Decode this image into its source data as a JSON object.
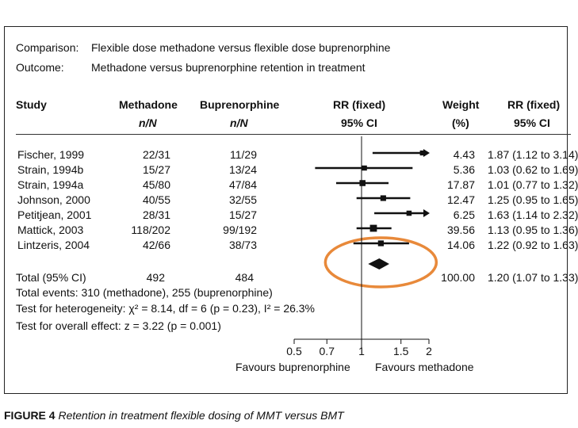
{
  "header": {
    "comparison_label": "Comparison:",
    "comparison_value": "Flexible dose methadone versus flexible dose buprenorphine",
    "outcome_label": "Outcome:",
    "outcome_value": "Methadone versus buprenorphine retention in treatment"
  },
  "columns": {
    "study": "Study",
    "methadone": "Methadone",
    "methadone_sub": "n/N",
    "bup": "Buprenorphine",
    "bup_sub": "n/N",
    "rr_plot": "RR (fixed)",
    "rr_plot_sub": "95% CI",
    "weight": "Weight",
    "weight_sub": "(%)",
    "rr": "RR (fixed)",
    "rr_sub": "95% CI"
  },
  "rows": [
    {
      "study": "Fischer, 1999",
      "methadone": "22/31",
      "bup": "11/29",
      "weight": "4.43",
      "rr": "1.87 (1.12 to 3.14)"
    },
    {
      "study": "Strain, 1994b",
      "methadone": "15/27",
      "bup": "13/24",
      "weight": "5.36",
      "rr": "1.03 (0.62 to 1.69)"
    },
    {
      "study": "Strain, 1994a",
      "methadone": "45/80",
      "bup": "47/84",
      "weight": "17.87",
      "rr": "1.01 (0.77 to 1.32)"
    },
    {
      "study": "Johnson, 2000",
      "methadone": "40/55",
      "bup": "32/55",
      "weight": "12.47",
      "rr": "1.25 (0.95 to 1.65)"
    },
    {
      "study": "Petitjean, 2001",
      "methadone": "28/31",
      "bup": "15/27",
      "weight": "6.25",
      "rr": "1.63 (1.14 to 2.32)"
    },
    {
      "study": "Mattick, 2003",
      "methadone": "118/202",
      "bup": "99/192",
      "weight": "39.56",
      "rr": "1.13 (0.95 to 1.36)"
    },
    {
      "study": "Lintzeris, 2004",
      "methadone": "42/66",
      "bup": "38/73",
      "weight": "14.06",
      "rr": "1.22 (0.92 to 1.63)"
    }
  ],
  "total": {
    "label": "Total (95% CI)",
    "methadone": "492",
    "bup": "484",
    "weight": "100.00",
    "rr": "1.20 (1.07 to 1.33)"
  },
  "footnotes": {
    "events": "Total events: 310 (methadone), 255 (buprenorphine)",
    "heterogeneity": "Test for heterogeneity: χ² = 8.14, df = 6 (p = 0.23), I² = 26.3%",
    "overall": "Test for overall effect: z = 3.22 (p = 0.001)"
  },
  "axis": {
    "favours_left": "Favours buprenorphine",
    "favours_right": "Favours methadone"
  },
  "caption": {
    "figure": "FIGURE 4",
    "text": "Retention in treatment flexible dosing of MMT versus BMT"
  },
  "colors": {
    "ink": "#111111",
    "highlight": "#e8893a"
  },
  "chart_data": {
    "type": "scatter",
    "subtype": "forest-plot",
    "title": "Methadone versus buprenorphine retention in treatment",
    "xscale": "log",
    "xlim": [
      0.5,
      2
    ],
    "xticks": [
      0.5,
      0.7,
      1,
      1.5,
      2
    ],
    "xtick_labels": [
      "0.5",
      "0.7",
      "1",
      "1.5",
      "2"
    ],
    "null_line": 1,
    "studies": [
      {
        "name": "Fischer, 1999",
        "rr": 1.87,
        "lo": 1.12,
        "hi": 3.14,
        "weight": 4.43
      },
      {
        "name": "Strain, 1994b",
        "rr": 1.03,
        "lo": 0.62,
        "hi": 1.69,
        "weight": 5.36
      },
      {
        "name": "Strain, 1994a",
        "rr": 1.01,
        "lo": 0.77,
        "hi": 1.32,
        "weight": 17.87
      },
      {
        "name": "Johnson, 2000",
        "rr": 1.25,
        "lo": 0.95,
        "hi": 1.65,
        "weight": 12.47
      },
      {
        "name": "Petitjean, 2001",
        "rr": 1.63,
        "lo": 1.14,
        "hi": 2.32,
        "weight": 6.25
      },
      {
        "name": "Mattick, 2003",
        "rr": 1.13,
        "lo": 0.95,
        "hi": 1.36,
        "weight": 39.56
      },
      {
        "name": "Lintzeris, 2004",
        "rr": 1.22,
        "lo": 0.92,
        "hi": 1.63,
        "weight": 14.06
      }
    ],
    "pooled": {
      "name": "Total (95% CI)",
      "rr": 1.2,
      "lo": 1.07,
      "hi": 1.33,
      "weight": 100.0
    },
    "annotation": "orange ellipse highlighting pooled estimate"
  }
}
